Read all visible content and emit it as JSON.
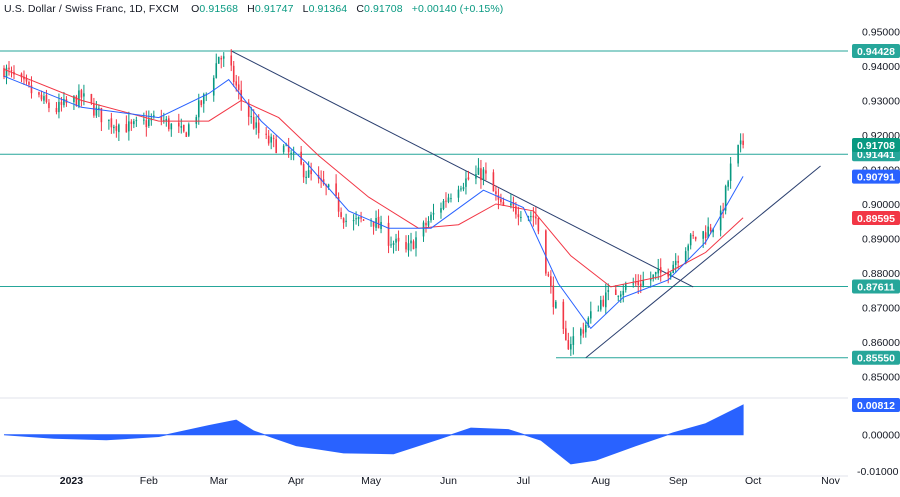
{
  "header": {
    "symbol": "U.S. Dollar / Swiss Franc, 1D, FXCM",
    "open_label": "O",
    "open": "0.91568",
    "high_label": "H",
    "high": "0.91747",
    "low_label": "L",
    "low": "0.91364",
    "close_label": "C",
    "close": "0.91708",
    "change": "+0.00140 (+0.15%)"
  },
  "colors": {
    "up": "#089981",
    "down": "#f23645",
    "ma_fast": "#2962ff",
    "ma_slow": "#f23645",
    "level_line": "#26a69a",
    "trendline": "#2a3f6f",
    "oscillator": "#2962ff",
    "price_tag": "#089981"
  },
  "chart_data": [
    {
      "type": "candlestick",
      "name": "price",
      "ylim": [
        0.845,
        0.955
      ],
      "y_ticks": [
        "0.95000",
        "0.94000",
        "0.93000",
        "0.92000",
        "0.91000",
        "0.90000",
        "0.89000",
        "0.88000",
        "0.87000",
        "0.86000",
        "0.85000"
      ],
      "y_tick_values": [
        0.95,
        0.94,
        0.93,
        0.92,
        0.91,
        0.9,
        0.89,
        0.88,
        0.87,
        0.86,
        0.85
      ],
      "x_ticks": [
        "2023",
        "Feb",
        "Mar",
        "Apr",
        "May",
        "Jun",
        "Jul",
        "Aug",
        "Sep",
        "Oct",
        "Nov"
      ],
      "x_tick_dates": [
        "2023-01-01",
        "2023-02-01",
        "2023-03-01",
        "2023-04-01",
        "2023-05-01",
        "2023-06-01",
        "2023-07-01",
        "2023-08-01",
        "2023-09-01",
        "2023-10-01",
        "2023-11-01"
      ],
      "x_start": "2022-12-05",
      "x_end": "2023-11-08",
      "close_path": [
        [
          "2022-12-05",
          0.939
        ],
        [
          "2022-12-15",
          0.933
        ],
        [
          "2022-12-25",
          0.927
        ],
        [
          "2023-01-05",
          0.931
        ],
        [
          "2023-01-15",
          0.924
        ],
        [
          "2023-01-25",
          0.922
        ],
        [
          "2023-02-05",
          0.925
        ],
        [
          "2023-02-15",
          0.92
        ],
        [
          "2023-02-25",
          0.933
        ],
        [
          "2023-03-01",
          0.943
        ],
        [
          "2023-03-05",
          0.94
        ],
        [
          "2023-03-10",
          0.93
        ],
        [
          "2023-03-18",
          0.919
        ],
        [
          "2023-03-27",
          0.916
        ],
        [
          "2023-04-05",
          0.909
        ],
        [
          "2023-04-15",
          0.903
        ],
        [
          "2023-04-22",
          0.894
        ],
        [
          "2023-05-01",
          0.896
        ],
        [
          "2023-05-08",
          0.89
        ],
        [
          "2023-05-15",
          0.886
        ],
        [
          "2023-05-25",
          0.896
        ],
        [
          "2023-06-05",
          0.906
        ],
        [
          "2023-06-15",
          0.909
        ],
        [
          "2023-06-22",
          0.899
        ],
        [
          "2023-07-01",
          0.898
        ],
        [
          "2023-07-06",
          0.896
        ],
        [
          "2023-07-12",
          0.875
        ],
        [
          "2023-07-18",
          0.859
        ],
        [
          "2023-07-25",
          0.864
        ],
        [
          "2023-08-01",
          0.872
        ],
        [
          "2023-08-10",
          0.876
        ],
        [
          "2023-08-20",
          0.878
        ],
        [
          "2023-08-28",
          0.881
        ],
        [
          "2023-09-05",
          0.889
        ],
        [
          "2023-09-12",
          0.892
        ],
        [
          "2023-09-18",
          0.896
        ],
        [
          "2023-09-23",
          0.914
        ],
        [
          "2023-09-27",
          0.9171
        ]
      ],
      "ma_fast_path": [
        [
          "2022-12-05",
          0.937
        ],
        [
          "2023-01-05",
          0.928
        ],
        [
          "2023-02-05",
          0.925
        ],
        [
          "2023-02-25",
          0.932
        ],
        [
          "2023-03-05",
          0.936
        ],
        [
          "2023-03-18",
          0.924
        ],
        [
          "2023-04-05",
          0.912
        ],
        [
          "2023-04-22",
          0.898
        ],
        [
          "2023-05-08",
          0.893
        ],
        [
          "2023-05-25",
          0.893
        ],
        [
          "2023-06-15",
          0.904
        ],
        [
          "2023-07-01",
          0.899
        ],
        [
          "2023-07-15",
          0.877
        ],
        [
          "2023-07-28",
          0.864
        ],
        [
          "2023-08-10",
          0.873
        ],
        [
          "2023-08-28",
          0.878
        ],
        [
          "2023-09-12",
          0.889
        ],
        [
          "2023-09-27",
          0.908
        ]
      ],
      "ma_slow_path": [
        [
          "2022-12-05",
          0.939
        ],
        [
          "2023-01-05",
          0.93
        ],
        [
          "2023-02-05",
          0.924
        ],
        [
          "2023-02-25",
          0.924
        ],
        [
          "2023-03-10",
          0.93
        ],
        [
          "2023-03-25",
          0.925
        ],
        [
          "2023-04-10",
          0.914
        ],
        [
          "2023-04-30",
          0.902
        ],
        [
          "2023-05-20",
          0.893
        ],
        [
          "2023-06-05",
          0.894
        ],
        [
          "2023-06-20",
          0.9
        ],
        [
          "2023-07-05",
          0.898
        ],
        [
          "2023-07-20",
          0.885
        ],
        [
          "2023-08-05",
          0.876
        ],
        [
          "2023-08-25",
          0.879
        ],
        [
          "2023-09-12",
          0.886
        ],
        [
          "2023-09-27",
          0.896
        ]
      ],
      "horizontal_levels": [
        {
          "value": 0.94428,
          "label": "0.94428"
        },
        {
          "value": 0.91441,
          "label": "0.91441"
        },
        {
          "value": 0.87611,
          "label": "0.87611"
        },
        {
          "value": 0.8555,
          "label": "0.85550"
        }
      ],
      "trendlines": [
        {
          "from": [
            "2023-03-06",
            0.9443
          ],
          "to": [
            "2023-09-07",
            0.876
          ]
        },
        {
          "from": [
            "2023-07-26",
            0.8555
          ],
          "to": [
            "2023-10-28",
            0.911
          ]
        }
      ],
      "price_tags": [
        {
          "value": 0.91708,
          "label": "0.91708",
          "kind": "last"
        },
        {
          "value": 0.90791,
          "label": "0.90791",
          "kind": "ma_fast"
        },
        {
          "value": 0.89595,
          "label": "0.89595",
          "kind": "ma_slow"
        }
      ]
    },
    {
      "type": "area",
      "name": "oscillator",
      "ylim": [
        -0.0105,
        0.0095
      ],
      "y_ticks": [
        "0.00000",
        "-0.01000"
      ],
      "y_tick_values": [
        0.0,
        -0.01
      ],
      "last": {
        "value": 0.00812,
        "label": "0.00812"
      },
      "path": [
        [
          "2022-12-05",
          0.0
        ],
        [
          "2022-12-25",
          -0.001
        ],
        [
          "2023-01-15",
          -0.0014
        ],
        [
          "2023-02-05",
          -0.0005
        ],
        [
          "2023-02-25",
          0.0025
        ],
        [
          "2023-03-08",
          0.004
        ],
        [
          "2023-03-15",
          0.001
        ],
        [
          "2023-04-01",
          -0.003
        ],
        [
          "2023-04-20",
          -0.005
        ],
        [
          "2023-05-10",
          -0.0052
        ],
        [
          "2023-05-28",
          -0.0012
        ],
        [
          "2023-06-10",
          0.0018
        ],
        [
          "2023-06-25",
          0.0014
        ],
        [
          "2023-07-08",
          -0.0015
        ],
        [
          "2023-07-20",
          -0.008
        ],
        [
          "2023-07-30",
          -0.007
        ],
        [
          "2023-08-15",
          -0.003
        ],
        [
          "2023-08-30",
          0.0005
        ],
        [
          "2023-09-12",
          0.003
        ],
        [
          "2023-09-27",
          0.0081
        ]
      ]
    }
  ]
}
